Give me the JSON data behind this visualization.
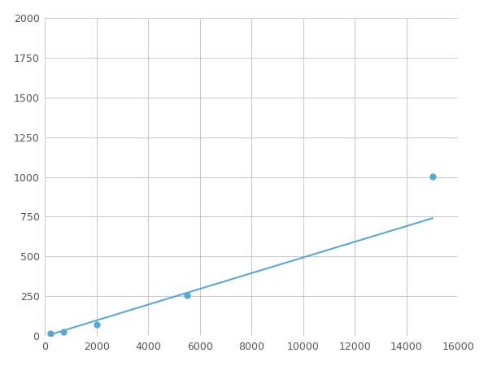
{
  "x": [
    200,
    700,
    2000,
    5500,
    15000
  ],
  "y": [
    15,
    25,
    75,
    255,
    1005
  ],
  "line_color": "#5ba7d4",
  "marker_color": "#5ba7d4",
  "marker_size": 5,
  "xlim": [
    0,
    16000
  ],
  "ylim": [
    0,
    2000
  ],
  "xticks": [
    0,
    2000,
    4000,
    6000,
    8000,
    10000,
    12000,
    14000,
    16000
  ],
  "yticks": [
    0,
    250,
    500,
    750,
    1000,
    1250,
    1500,
    1750,
    2000
  ],
  "grid_color": "#c8c8c8",
  "background_color": "#ffffff",
  "figsize": [
    6.0,
    4.5
  ],
  "dpi": 100
}
